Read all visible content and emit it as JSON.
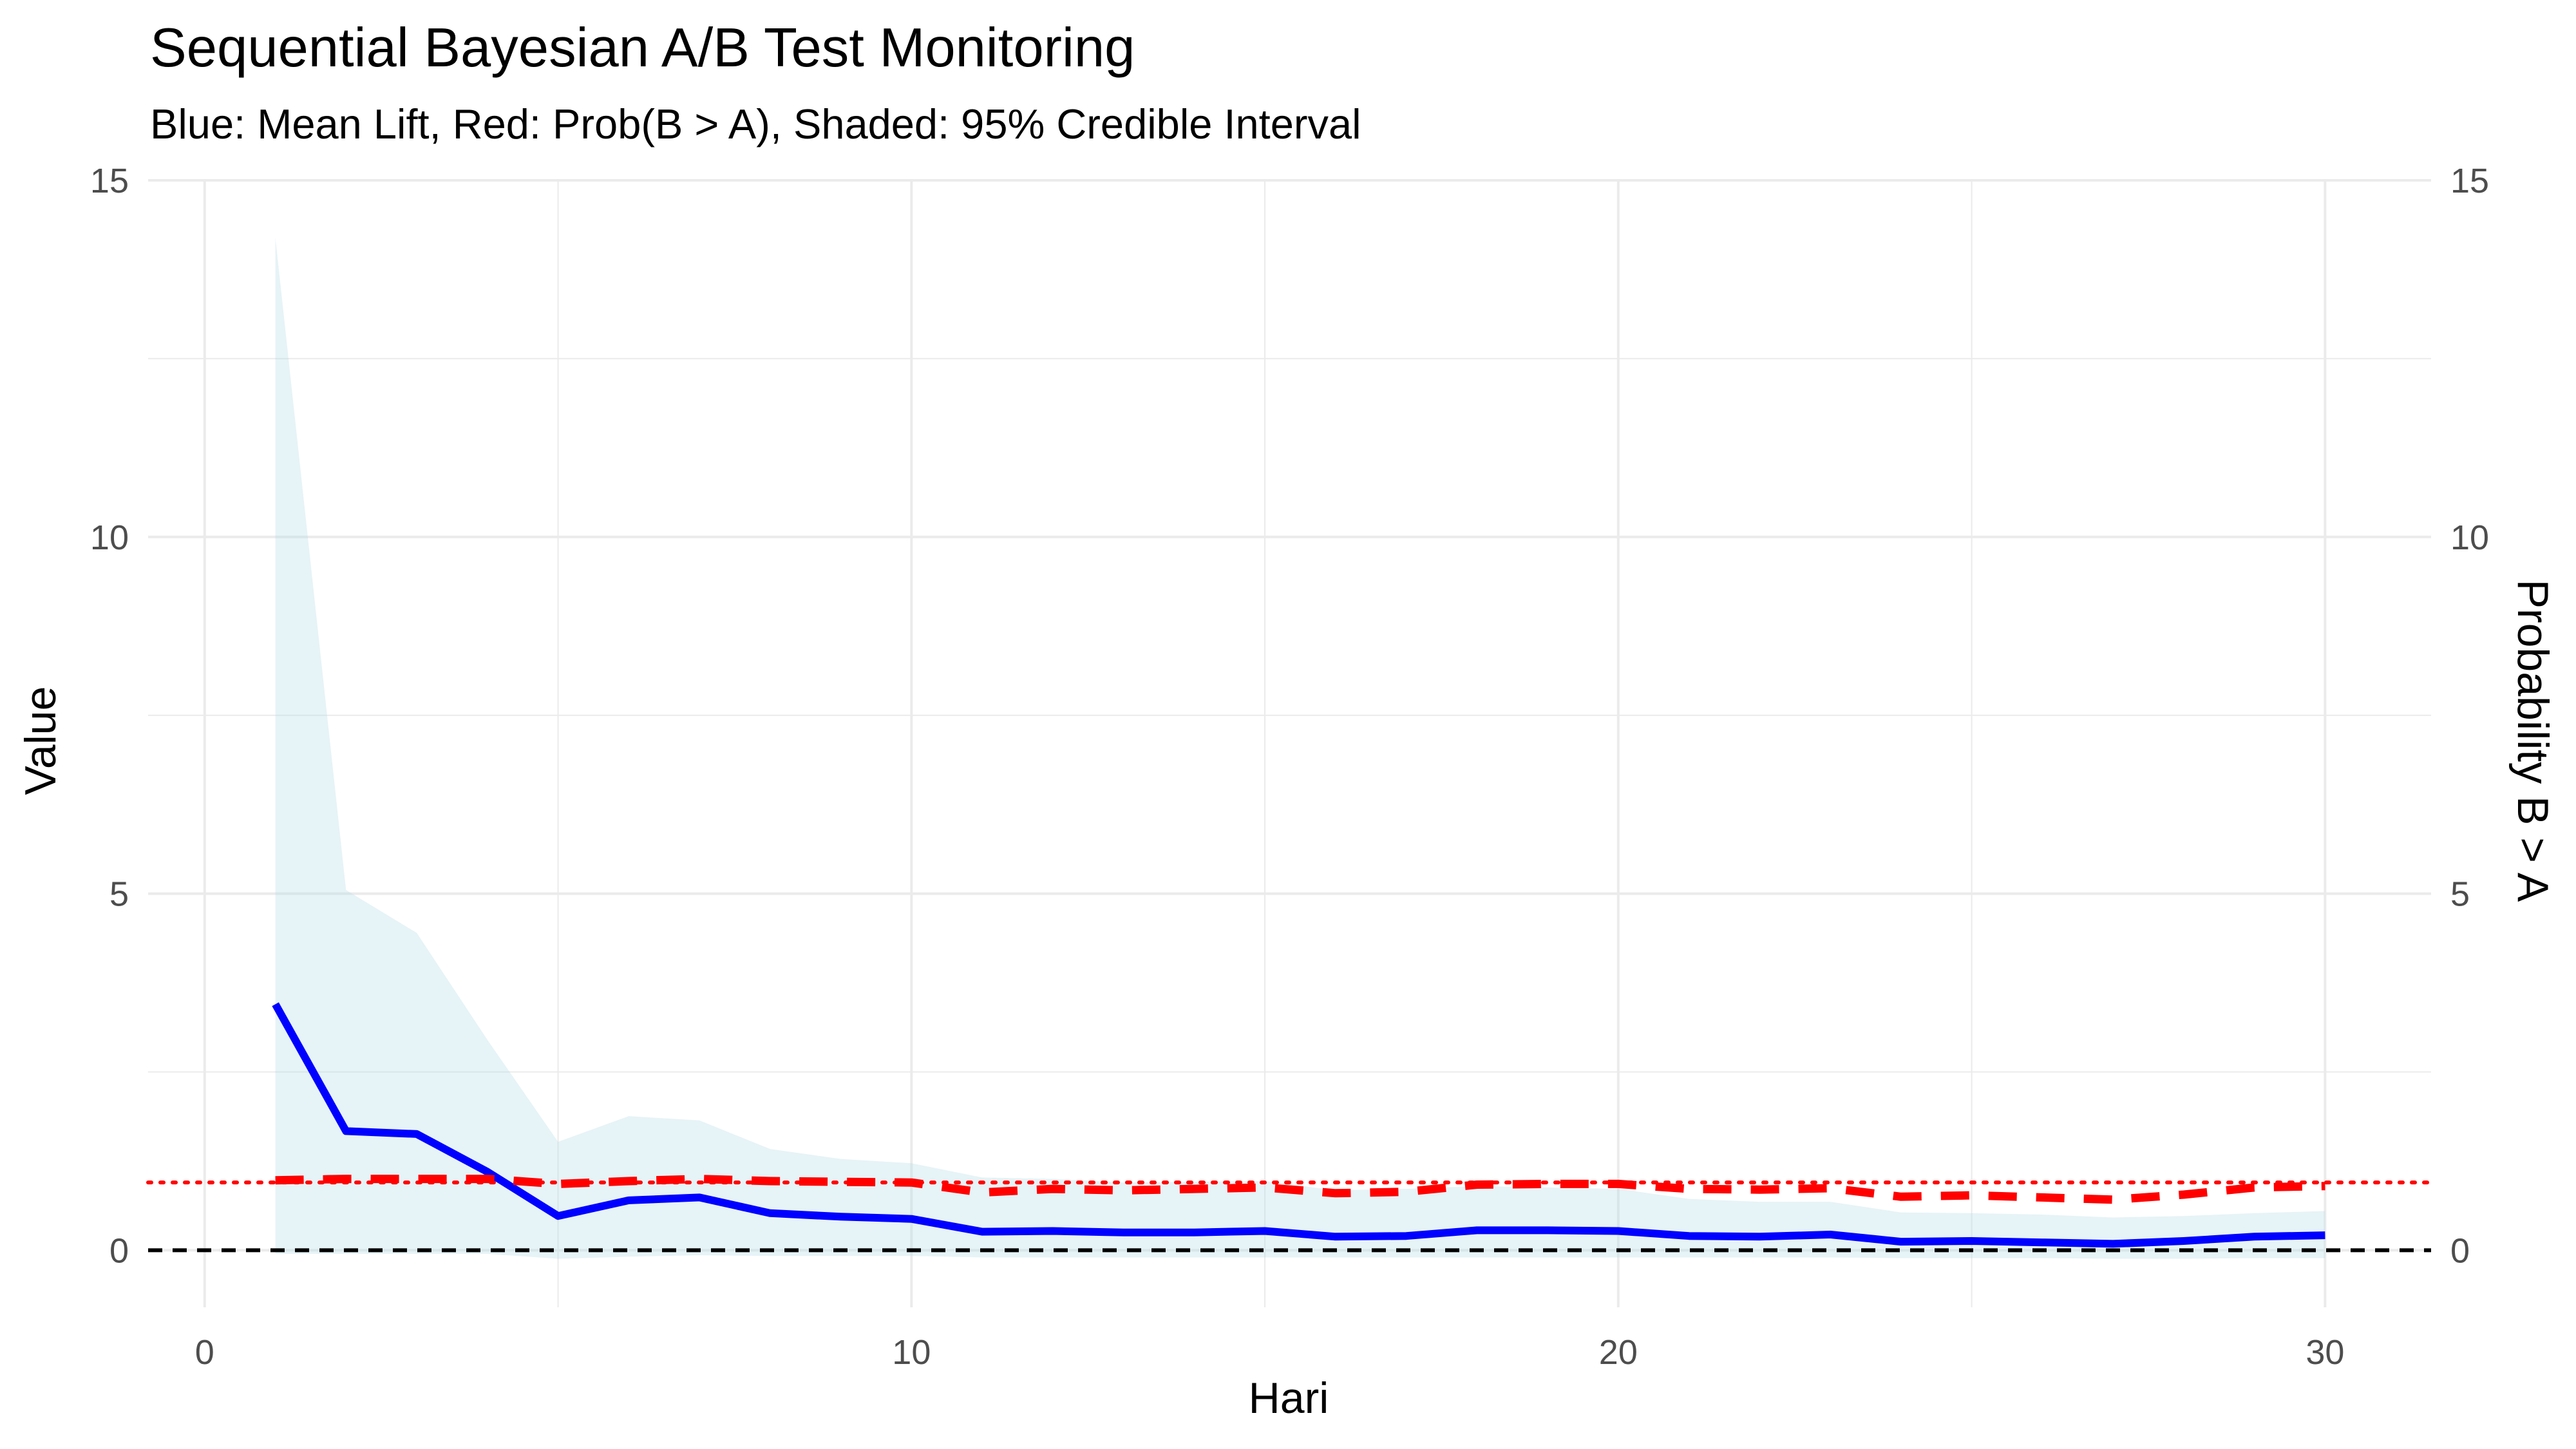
{
  "chart_data": {
    "type": "line",
    "title": "Sequential Bayesian A/B Test Monitoring",
    "subtitle": "Blue: Mean Lift, Red: Prob(B > A), Shaded: 95% Credible Interval",
    "xlabel": "Hari",
    "ylabel": "Value",
    "y2label": "Probability B > A",
    "xlim": [
      -0.8,
      31.5
    ],
    "ylim": [
      -0.8,
      15
    ],
    "x_ticks": [
      "0",
      "10",
      "20",
      "30"
    ],
    "x_tick_values": [
      0,
      10,
      20,
      30
    ],
    "y_ticks": [
      "0",
      "5",
      "10",
      "15"
    ],
    "y_tick_values": [
      0,
      5,
      10,
      15
    ],
    "y2_ticks": [
      "0",
      "5",
      "10",
      "15"
    ],
    "grid": true,
    "legend": "none",
    "colors": {
      "mean_lift": "#0000ff",
      "prob_b_gt_a": "#ff0000",
      "ribbon": "#add8e6",
      "zero_line": "#000000",
      "threshold_line": "#ff0000",
      "grid": "#ebebeb"
    },
    "x": [
      1,
      2,
      3,
      4,
      5,
      6,
      7,
      8,
      9,
      10,
      11,
      12,
      13,
      14,
      15,
      16,
      17,
      18,
      19,
      20,
      21,
      22,
      23,
      24,
      25,
      26,
      27,
      28,
      29,
      30
    ],
    "series": [
      {
        "key": "mean_lift",
        "values": [
          3.45,
          1.67,
          1.63,
          1.1,
          0.48,
          0.7,
          0.74,
          0.52,
          0.47,
          0.44,
          0.26,
          0.27,
          0.25,
          0.25,
          0.27,
          0.19,
          0.2,
          0.28,
          0.28,
          0.27,
          0.2,
          0.19,
          0.22,
          0.12,
          0.13,
          0.11,
          0.09,
          0.13,
          0.19,
          0.21
        ]
      },
      {
        "key": "prob_b_gt_a",
        "values": [
          0.98,
          1.0,
          1.0,
          1.0,
          0.93,
          0.97,
          1.0,
          0.97,
          0.96,
          0.95,
          0.81,
          0.86,
          0.84,
          0.86,
          0.88,
          0.8,
          0.82,
          0.92,
          0.93,
          0.93,
          0.86,
          0.85,
          0.87,
          0.75,
          0.77,
          0.74,
          0.71,
          0.78,
          0.88,
          0.9
        ]
      }
    ],
    "ci_lower": [
      -0.05,
      -0.05,
      -0.05,
      -0.05,
      -0.12,
      -0.09,
      -0.07,
      -0.08,
      -0.08,
      -0.08,
      -0.1,
      -0.1,
      -0.1,
      -0.1,
      -0.1,
      -0.1,
      -0.1,
      -0.1,
      -0.1,
      -0.1,
      -0.1,
      -0.1,
      -0.1,
      -0.11,
      -0.11,
      -0.11,
      -0.12,
      -0.12,
      -0.11,
      -0.11
    ],
    "ci_upper": [
      14.2,
      5.05,
      4.45,
      2.95,
      1.52,
      1.88,
      1.82,
      1.42,
      1.28,
      1.22,
      1.02,
      1.0,
      0.95,
      0.96,
      0.97,
      0.84,
      0.86,
      0.9,
      0.88,
      0.86,
      0.72,
      0.68,
      0.68,
      0.53,
      0.52,
      0.5,
      0.46,
      0.48,
      0.52,
      0.55
    ],
    "reference_lines": [
      {
        "key": "zero_line",
        "y": 0,
        "style": "dashed"
      },
      {
        "key": "threshold_line",
        "y": 0.95,
        "style": "dotted"
      }
    ]
  }
}
